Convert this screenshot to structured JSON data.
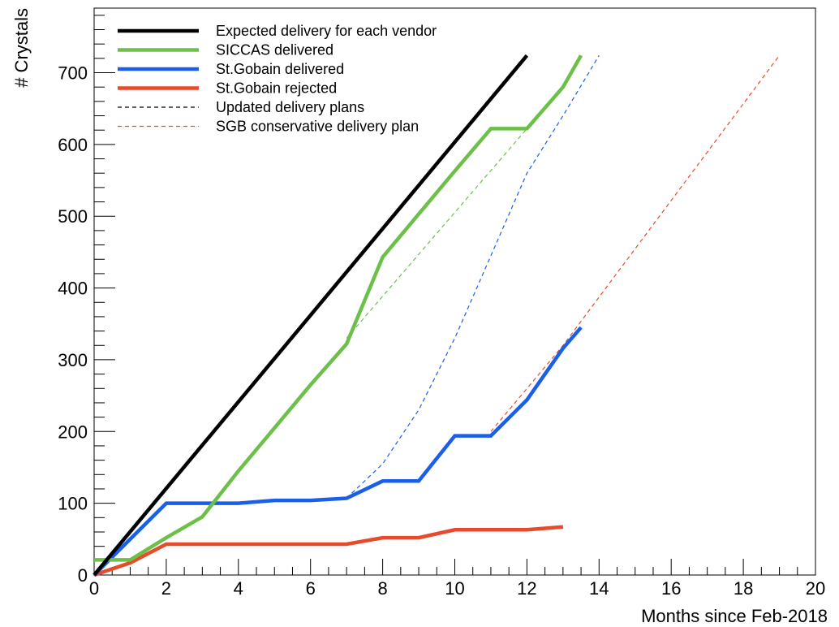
{
  "chart_data": {
    "type": "line",
    "title": "",
    "xlabel": "Months since Feb-2018",
    "ylabel": "# Crystals",
    "xlim": [
      0,
      20
    ],
    "ylim": [
      0,
      790
    ],
    "x_ticks": [
      0,
      2,
      4,
      6,
      8,
      10,
      12,
      14,
      16,
      18,
      20
    ],
    "y_ticks": [
      0,
      100,
      200,
      300,
      400,
      500,
      600,
      700
    ],
    "grid": false,
    "legend_position": "top-left",
    "series": [
      {
        "name": "Expected delivery for each vendor",
        "color": "#000000",
        "style": "solid",
        "points": [
          [
            0,
            0
          ],
          [
            12,
            724
          ]
        ]
      },
      {
        "name": "SICCAS delivered",
        "color": "#6cc04a",
        "style": "solid",
        "points": [
          [
            0,
            21
          ],
          [
            1,
            21
          ],
          [
            2,
            52
          ],
          [
            3,
            81
          ],
          [
            4,
            145
          ],
          [
            5,
            205
          ],
          [
            6,
            265
          ],
          [
            7,
            322
          ],
          [
            8,
            443
          ],
          [
            9,
            503
          ],
          [
            10,
            563
          ],
          [
            11,
            622
          ],
          [
            12,
            622
          ],
          [
            13,
            680
          ],
          [
            13.5,
            724
          ]
        ]
      },
      {
        "name": "St.Gobain delivered",
        "color": "#1a5fe8",
        "style": "solid",
        "points": [
          [
            0,
            0
          ],
          [
            2,
            100
          ],
          [
            4,
            100
          ],
          [
            5,
            104
          ],
          [
            6,
            104
          ],
          [
            7,
            107
          ],
          [
            8,
            131
          ],
          [
            9,
            131
          ],
          [
            10,
            194
          ],
          [
            11,
            194
          ],
          [
            12,
            244
          ],
          [
            13,
            316
          ],
          [
            13.5,
            345
          ]
        ]
      },
      {
        "name": "St.Gobain rejected",
        "color": "#e84a2c",
        "style": "solid",
        "points": [
          [
            0,
            0
          ],
          [
            1,
            17
          ],
          [
            2,
            43
          ],
          [
            3,
            43
          ],
          [
            4,
            43
          ],
          [
            5,
            43
          ],
          [
            6,
            43
          ],
          [
            7,
            43
          ],
          [
            8,
            52
          ],
          [
            9,
            52
          ],
          [
            10,
            63
          ],
          [
            11,
            63
          ],
          [
            12,
            63
          ],
          [
            13,
            67
          ]
        ]
      },
      {
        "name": "Updated delivery plans",
        "color": "#000000",
        "style": "dashed",
        "points": []
      },
      {
        "name": "SGB conservative delivery plan",
        "color": "#e84a2c",
        "style": "dashed",
        "points": [
          [
            11,
            200
          ],
          [
            13,
            320
          ],
          [
            19,
            724
          ]
        ]
      }
    ],
    "extra_dashed_lines": [
      {
        "color": "#6cc04a",
        "points": [
          [
            7,
            330
          ],
          [
            12,
            622
          ]
        ]
      },
      {
        "color": "#1a5fe8",
        "points": [
          [
            7,
            107
          ],
          [
            8,
            155
          ],
          [
            9,
            230
          ],
          [
            10,
            330
          ],
          [
            11,
            445
          ],
          [
            12,
            560
          ],
          [
            13,
            640
          ],
          [
            14,
            724
          ]
        ]
      }
    ]
  }
}
